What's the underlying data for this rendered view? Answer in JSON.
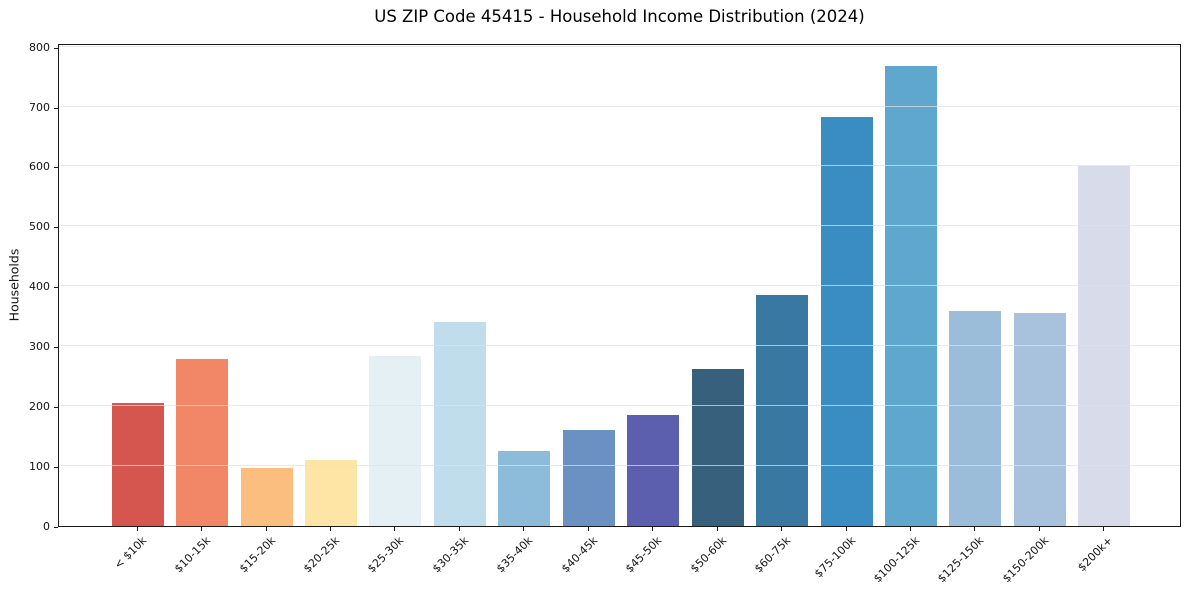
{
  "chart_data": {
    "type": "bar",
    "title": "US ZIP Code 45415 - Household Income Distribution (2024)",
    "xlabel": "",
    "ylabel": "Households",
    "categories": [
      "< $10k",
      "$10-15k",
      "$15-20k",
      "$20-25k",
      "$25-30k",
      "$30-35k",
      "$35-40k",
      "$40-45k",
      "$45-50k",
      "$50-60k",
      "$60-75k",
      "$75-100k",
      "$100-125k",
      "$125-150k",
      "$150-200k",
      "$200k+"
    ],
    "values": [
      205,
      278,
      96,
      110,
      283,
      340,
      126,
      161,
      186,
      262,
      385,
      683,
      768,
      358,
      355,
      600
    ],
    "bar_colors": [
      "#d5564e",
      "#f28767",
      "#fbbe7e",
      "#fde5a6",
      "#e5f0f5",
      "#c0ddeb",
      "#8dbcda",
      "#6a91c1",
      "#5c5fae",
      "#36607b",
      "#3978a1",
      "#398dc2",
      "#60a7cd",
      "#9bbdd9",
      "#a8c2dd",
      "#d8dbe9"
    ],
    "ylim": [
      0,
      806
    ],
    "yticks": [
      0,
      100,
      200,
      300,
      400,
      500,
      600,
      700,
      800
    ],
    "grid": "horizontal-only",
    "legend": "none",
    "x_tick_rotation_deg": 45,
    "background_color": "#ffffff",
    "spine_color": "#1a1a1a"
  }
}
